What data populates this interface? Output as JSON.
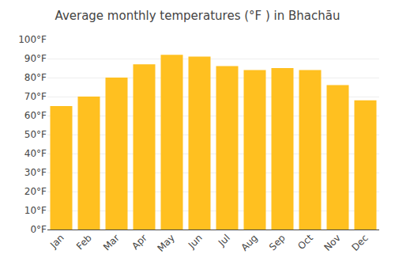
{
  "chart_data": {
    "type": "bar",
    "title": "Average monthly temperatures (°F ) in Bhachāu",
    "categories": [
      "Jan",
      "Feb",
      "Mar",
      "Apr",
      "May",
      "Jun",
      "Jul",
      "Aug",
      "Sep",
      "Oct",
      "Nov",
      "Dec"
    ],
    "values": [
      65,
      70,
      80,
      87,
      92,
      91,
      86,
      84,
      85,
      84,
      76,
      68
    ],
    "color": "#FFC020",
    "ylim": [
      0,
      100
    ],
    "yticks": [
      {
        "value": 0,
        "label": "0°F"
      },
      {
        "value": 10,
        "label": "10°F"
      },
      {
        "value": 20,
        "label": "20°F"
      },
      {
        "value": 30,
        "label": "30°F"
      },
      {
        "value": 40,
        "label": "40°F"
      },
      {
        "value": 50,
        "label": "50°F"
      },
      {
        "value": 60,
        "label": "60°F"
      },
      {
        "value": 70,
        "label": "70°F"
      },
      {
        "value": 80,
        "label": "80°F"
      },
      {
        "value": 90,
        "label": "90°F"
      },
      {
        "value": 100,
        "label": "100°F"
      }
    ],
    "grid": true
  }
}
